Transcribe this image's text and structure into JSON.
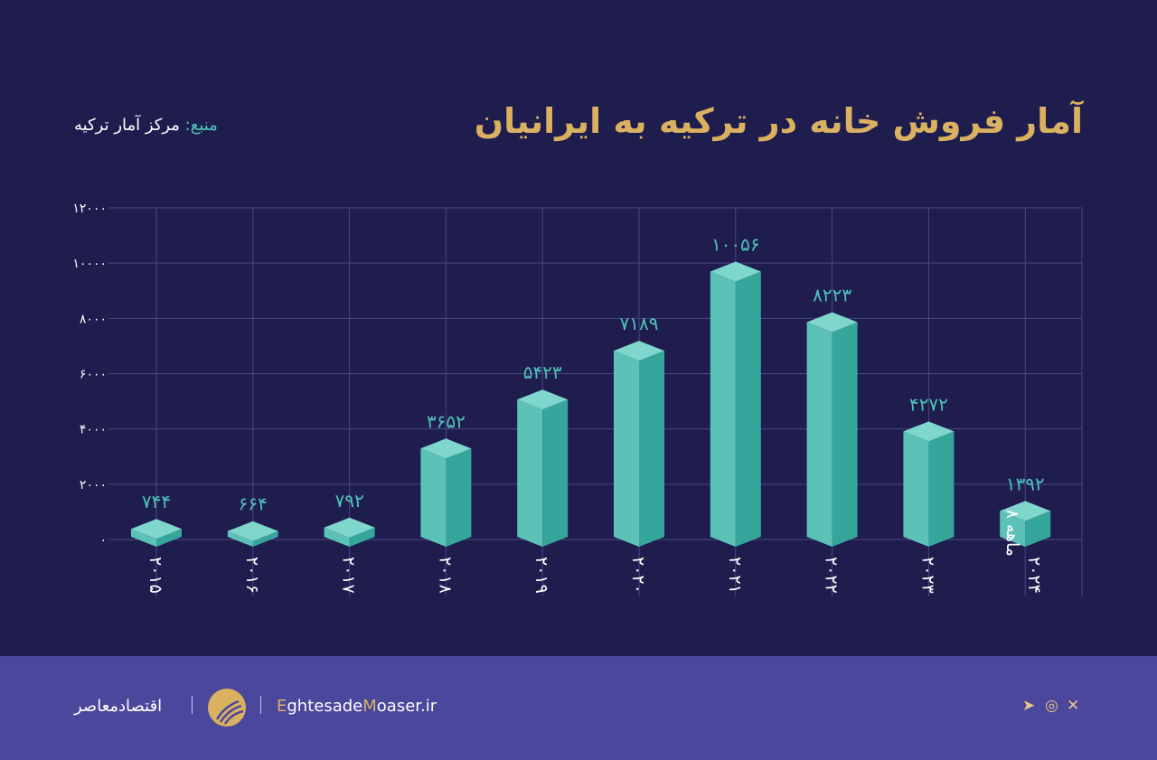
{
  "header": {
    "title": "آمار فروش خانه در ترکیه به ایرانیان",
    "source_label": "منبع:",
    "source_value": "مرکز آمار ترکیه"
  },
  "chart_data": {
    "type": "bar",
    "title": "آمار فروش خانه در ترکیه به ایرانیان",
    "categories": [
      "۲۰۱۵",
      "۲۰۱۶",
      "۲۰۱۷",
      "۲۰۱۸",
      "۲۰۱۹",
      "۲۰۲۰",
      "۲۰۲۱",
      "۲۰۲۲",
      "۲۰۲۳",
      "۸ ماهه ۲۰۲۴"
    ],
    "values": [
      744,
      664,
      792,
      3652,
      5423,
      7189,
      10056,
      8223,
      4272,
      1392
    ],
    "value_labels": [
      "۷۴۴",
      "۶۶۴",
      "۷۹۲",
      "۳۶۵۲",
      "۵۴۲۳",
      "۷۱۸۹",
      "۱۰۰۵۶",
      "۸۲۲۳",
      "۴۲۷۲",
      "۱۳۹۲"
    ],
    "yticks": [
      0,
      2000,
      4000,
      6000,
      8000,
      10000,
      12000
    ],
    "ytick_labels": [
      "۰",
      "۲۰۰۰",
      "۴۰۰۰",
      "۶۰۰۰",
      "۸۰۰۰",
      "۱۰۰۰۰",
      "۱۲۰۰۰"
    ],
    "ylim": [
      0,
      12000
    ],
    "grid": true,
    "colors": {
      "front": "#5cc1b6",
      "side": "#36a69c",
      "top": "#7fd6cc",
      "label": "#4fc3b8"
    }
  },
  "footer": {
    "brand_fa": "اقتصادمعاصر",
    "site_e": "E",
    "site_1": "ghtesade",
    "site_m": "M",
    "site_2": "oaser.ir",
    "social": [
      "telegram-icon",
      "instagram-icon",
      "x-icon"
    ]
  }
}
